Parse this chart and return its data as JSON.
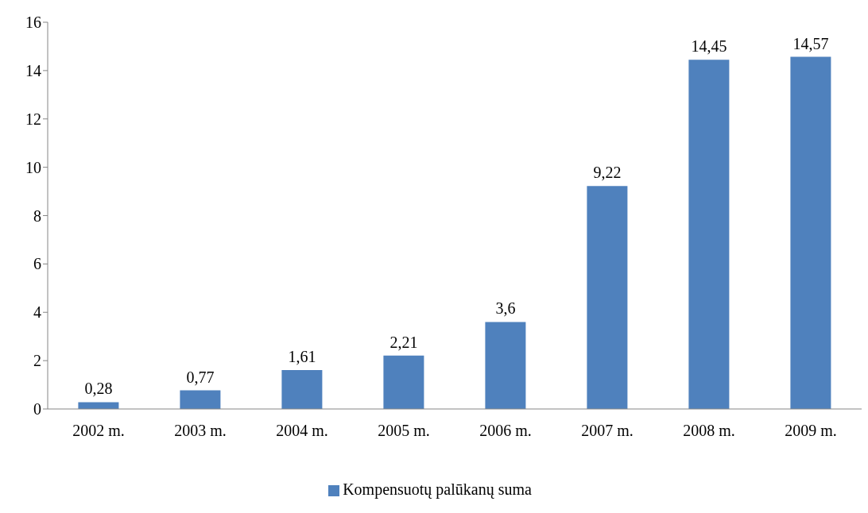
{
  "chart_data": {
    "type": "bar",
    "categories": [
      "2002 m.",
      "2003 m.",
      "2004 m.",
      "2005 m.",
      "2006 m.",
      "2007 m.",
      "2008 m.",
      "2009 m."
    ],
    "series": [
      {
        "name": "Kompensuotų palūkanų suma",
        "color": "#4f81bd",
        "values": [
          0.28,
          0.77,
          1.61,
          2.21,
          3.6,
          9.22,
          14.45,
          14.57
        ],
        "value_labels": [
          "0,28",
          "0,77",
          "1,61",
          "2,21",
          "3,6",
          "9,22",
          "14,45",
          "14,57"
        ]
      }
    ],
    "ylim": [
      0,
      16
    ],
    "yticks": [
      0,
      2,
      4,
      6,
      8,
      10,
      12,
      14,
      16
    ],
    "grid": false,
    "legend": "bottom"
  }
}
